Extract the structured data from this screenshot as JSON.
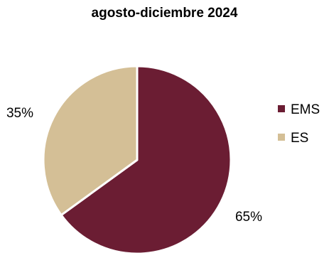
{
  "chart_data": {
    "type": "pie",
    "title": "agosto-diciembre 2024",
    "categories": [
      "EMS",
      "ES"
    ],
    "values": [
      65,
      35
    ],
    "labels": [
      "65%",
      "35%"
    ],
    "colors": [
      "#6B1D33",
      "#D4BF96"
    ],
    "legend_position": "right",
    "start_angle": "12 o'clock",
    "direction": "clockwise"
  }
}
